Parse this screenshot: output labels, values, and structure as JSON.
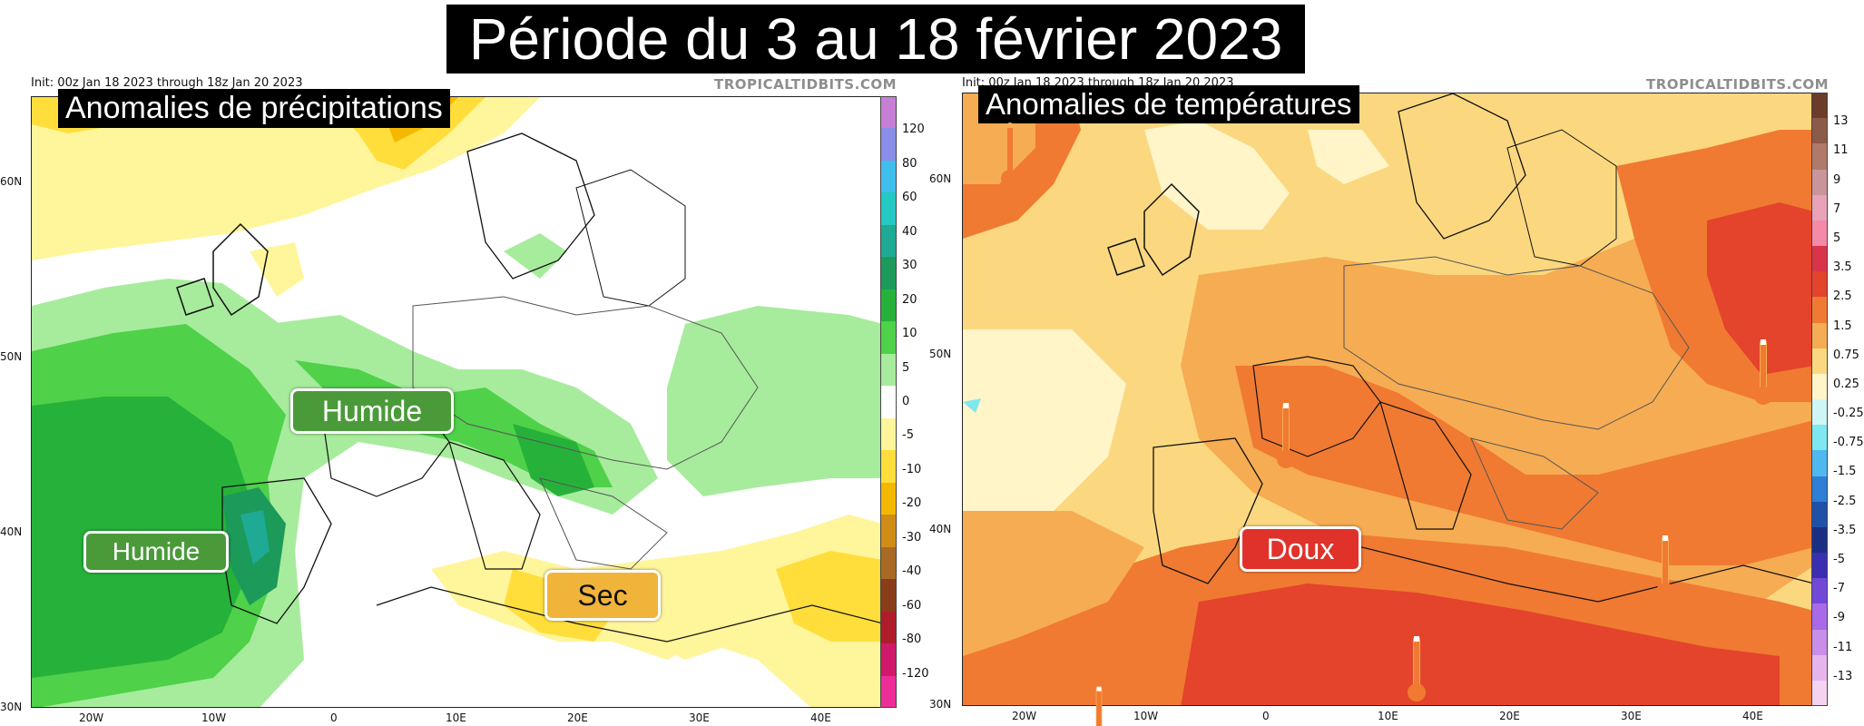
{
  "header": {
    "title": "Période du 3 au 18 février 2023"
  },
  "left_panel": {
    "init": "Init: 00z Jan 18 2023 through 18z Jan 20 2023",
    "site": "TROPICALTIDBITS.COM",
    "overlay_title": "Anomalies de précipitations",
    "tags": [
      "Humide",
      "Humide",
      "Sec"
    ],
    "lat_labels": [
      "60N",
      "50N",
      "40N",
      "30N"
    ],
    "lon_labels": [
      "20W",
      "10W",
      "0",
      "10E",
      "20E",
      "30E",
      "40E"
    ],
    "colorbar": {
      "labels": [
        "120",
        "80",
        "60",
        "40",
        "30",
        "20",
        "10",
        "5",
        "0",
        "-5",
        "-10",
        "-20",
        "-30",
        "-40",
        "-60",
        "-80",
        "-120"
      ],
      "colors": [
        "#c77fd6",
        "#8a8ee8",
        "#3fbfee",
        "#24c9c3",
        "#1eaa94",
        "#1c9a5a",
        "#26b23a",
        "#4fd14a",
        "#a7ec9c",
        "#ffffff",
        "#fff59b",
        "#ffde3b",
        "#f5b800",
        "#d18c18",
        "#a86a25",
        "#8a3d19",
        "#b01d2a",
        "#d0196b",
        "#ee2d98"
      ]
    }
  },
  "right_panel": {
    "init": "Init: 00z Jan 18 2023 through 18z Jan 20 2023",
    "site": "TROPICALTIDBITS.COM",
    "overlay_title": "Anomalies de températures",
    "tags": [
      "Doux"
    ],
    "lat_labels": [
      "60N",
      "50N",
      "40N",
      "30N"
    ],
    "lon_labels": [
      "20W",
      "10W",
      "0",
      "10E",
      "20E",
      "30E",
      "40E"
    ],
    "colorbar": {
      "labels": [
        "13",
        "11",
        "9",
        "7",
        "5",
        "3.5",
        "2.5",
        "1.5",
        "0.75",
        "0.25",
        "-0.25",
        "-0.75",
        "-1.5",
        "-2.5",
        "-3.5",
        "-5",
        "-7",
        "-9",
        "-11",
        "-13"
      ],
      "colors": [
        "#6b3c2a",
        "#8c5a48",
        "#b07a6a",
        "#c9959a",
        "#e8a3b8",
        "#f58aa8",
        "#d8344a",
        "#e4432c",
        "#f07a32",
        "#f6ac52",
        "#fbd880",
        "#fff5c8",
        "#cff6f6",
        "#7fe7ef",
        "#4fb8ef",
        "#2f7fd6",
        "#2050a8",
        "#1a2f84",
        "#3a2fb0",
        "#7248d8",
        "#a86ae8",
        "#c98fe8",
        "#e6b4ec",
        "#f3d3ef"
      ]
    }
  },
  "colors": {
    "wet": "#4b9a3a",
    "dry": "#f1b43a",
    "mild": "#e0322a"
  }
}
